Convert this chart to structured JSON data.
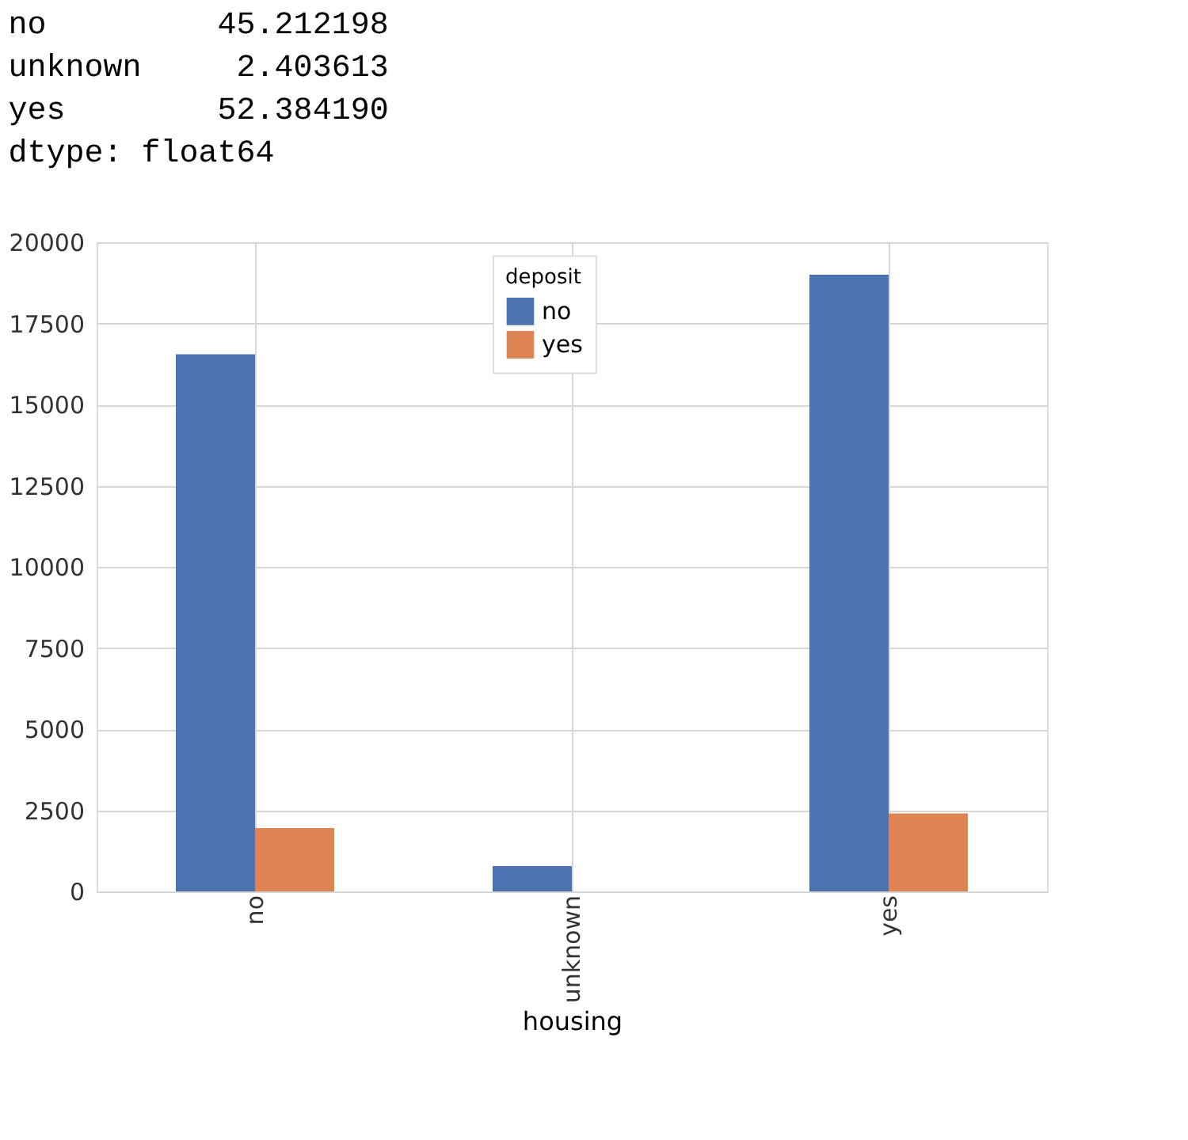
{
  "chart_data": {
    "type": "bar",
    "annotations": [
      "no         45.212198",
      "unknown     2.403613",
      "yes        52.384190",
      "dtype: float64"
    ],
    "xlabel": "housing",
    "legend_title": "deposit",
    "categories": [
      "no",
      "unknown",
      "yes"
    ],
    "series": [
      {
        "name": "no",
        "color": "#4c72b0",
        "values": [
          16550,
          780,
          19000
        ]
      },
      {
        "name": "yes",
        "color": "#dd8452",
        "values": [
          1950,
          0,
          2400
        ]
      }
    ],
    "ylim": [
      0,
      20000
    ],
    "yticks": [
      0,
      2500,
      5000,
      7500,
      10000,
      12500,
      15000,
      17500,
      20000
    ],
    "grid": true,
    "legend": "top"
  }
}
